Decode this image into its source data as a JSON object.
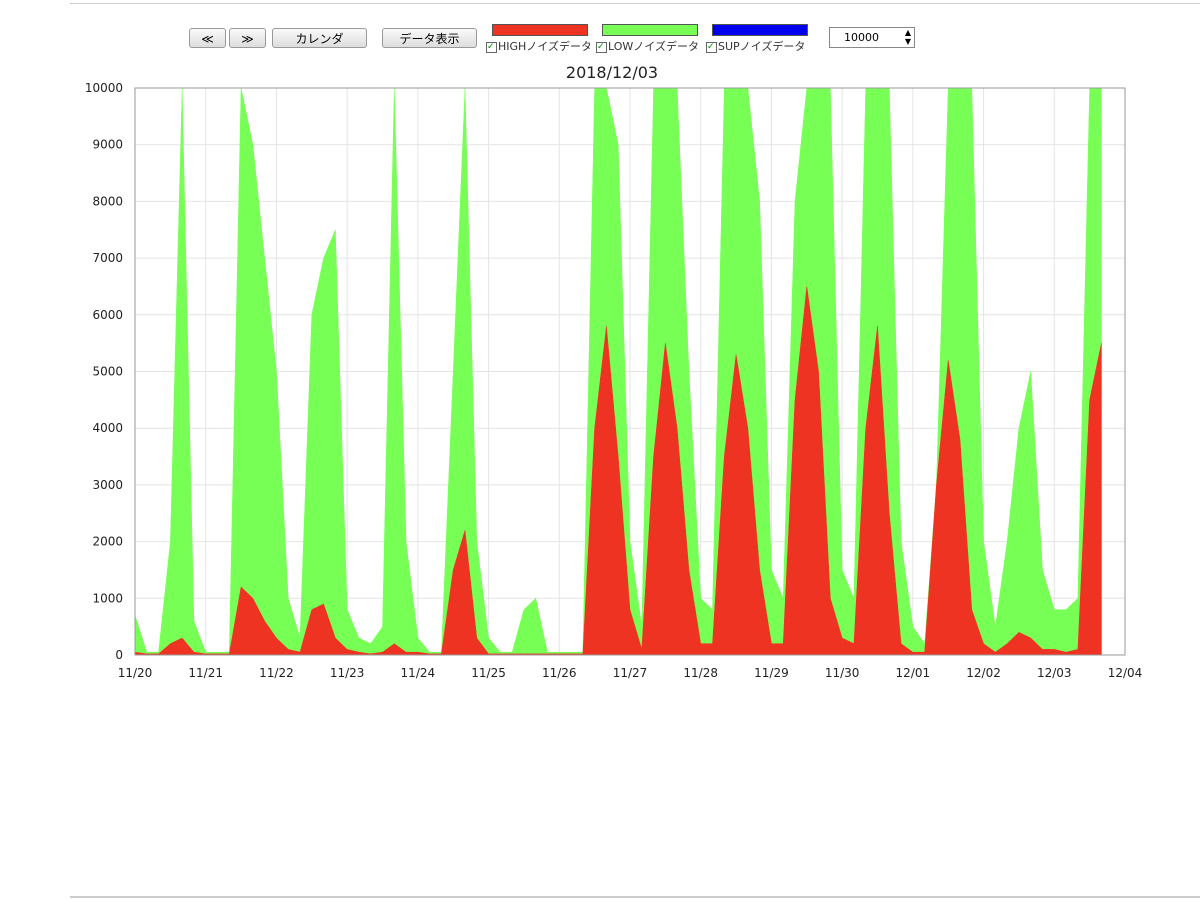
{
  "toolbar": {
    "prev": "≪",
    "next": "≫",
    "calendar": "カレンダ",
    "show": "データ表示",
    "spinner": "10000"
  },
  "chart_data": {
    "type": "area",
    "title": "2018/12/03",
    "x": [
      0,
      4,
      8,
      12,
      16,
      20,
      24,
      28,
      32,
      36,
      40,
      44,
      48,
      52,
      56,
      60,
      64,
      68,
      72,
      76,
      80,
      84,
      88,
      92,
      96,
      100,
      104,
      108,
      112,
      116,
      120,
      124,
      128,
      132,
      136,
      140,
      144,
      148,
      152,
      156,
      160,
      164,
      168,
      172,
      176,
      180,
      184,
      188,
      192,
      196,
      200,
      204,
      208,
      212,
      216,
      220,
      224,
      228,
      232,
      236,
      240,
      244,
      248,
      252,
      256,
      260,
      264,
      268,
      272,
      276,
      280,
      284,
      288,
      292,
      296,
      300,
      304,
      308,
      312,
      316,
      320,
      324,
      328
    ],
    "series": [
      {
        "name": "LOWノイズデータ",
        "color": "#77ff55",
        "values": [
          700,
          50,
          50,
          2000,
          10000,
          600,
          50,
          50,
          50,
          10000,
          9000,
          7000,
          5000,
          1000,
          300,
          6000,
          7000,
          7500,
          800,
          300,
          200,
          500,
          10000,
          2000,
          300,
          50,
          50,
          5000,
          10000,
          2000,
          300,
          50,
          50,
          800,
          1000,
          50,
          50,
          50,
          50,
          10000,
          10000,
          9000,
          2000,
          500,
          10000,
          10000,
          10000,
          5000,
          1000,
          800,
          10000,
          10000,
          10000,
          8000,
          1500,
          1000,
          8000,
          10000,
          10000,
          10000,
          1500,
          1000,
          10000,
          10000,
          10000,
          2000,
          500,
          200,
          3000,
          10000,
          10000,
          10000,
          2000,
          500,
          2000,
          4000,
          5000,
          1500,
          800,
          800,
          1000,
          10000,
          10000
        ]
      },
      {
        "name": "HIGHノイズデータ",
        "color": "#ee3322",
        "values": [
          50,
          20,
          20,
          200,
          300,
          50,
          20,
          20,
          20,
          1200,
          1000,
          600,
          300,
          100,
          50,
          800,
          900,
          300,
          100,
          50,
          20,
          50,
          200,
          50,
          50,
          20,
          20,
          1500,
          2200,
          300,
          20,
          20,
          20,
          20,
          20,
          20,
          20,
          20,
          20,
          4000,
          5800,
          3500,
          800,
          100,
          3500,
          5500,
          4000,
          1500,
          200,
          200,
          3500,
          5300,
          4000,
          1500,
          200,
          200,
          4500,
          6500,
          5000,
          1000,
          300,
          200,
          4000,
          5800,
          2500,
          200,
          50,
          50,
          3000,
          5200,
          3800,
          800,
          200,
          50,
          200,
          400,
          300,
          100,
          100,
          50,
          100,
          4500,
          5500
        ]
      },
      {
        "name": "SUPノイズデータ",
        "color": "#0000ee"
      }
    ],
    "legend_order": [
      1,
      0,
      2
    ],
    "xlim": [
      0,
      336
    ],
    "xticks": [
      {
        "value": 0,
        "label": "11/20"
      },
      {
        "value": 24,
        "label": "11/21"
      },
      {
        "value": 48,
        "label": "11/22"
      },
      {
        "value": 72,
        "label": "11/23"
      },
      {
        "value": 96,
        "label": "11/24"
      },
      {
        "value": 120,
        "label": "11/25"
      },
      {
        "value": 144,
        "label": "11/26"
      },
      {
        "value": 168,
        "label": "11/27"
      },
      {
        "value": 192,
        "label": "11/28"
      },
      {
        "value": 216,
        "label": "11/29"
      },
      {
        "value": 240,
        "label": "11/30"
      },
      {
        "value": 264,
        "label": "12/01"
      },
      {
        "value": 288,
        "label": "12/02"
      },
      {
        "value": 312,
        "label": "12/03"
      },
      {
        "value": 336,
        "label": "12/04"
      }
    ],
    "ylim": [
      0,
      10000
    ],
    "yticks": [
      0,
      1000,
      2000,
      3000,
      4000,
      5000,
      6000,
      7000,
      8000,
      9000,
      10000
    ],
    "grid": true
  }
}
